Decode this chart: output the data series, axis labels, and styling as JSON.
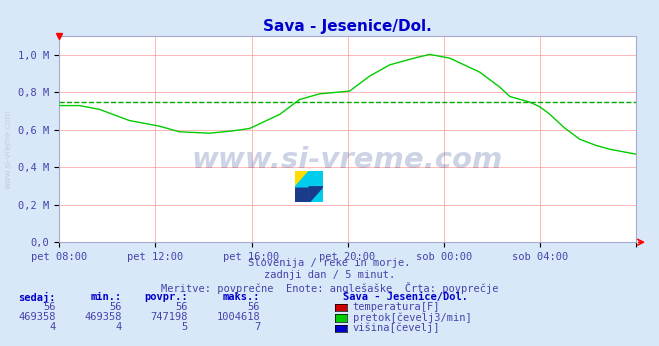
{
  "title": "Sava - Jesenice/Dol.",
  "title_color": "#0000cd",
  "bg_color": "#d8e8f8",
  "plot_bg_color": "#ffffff",
  "grid_color_major": "#ff9999",
  "line_color": "#00cc00",
  "avg_line_color": "#00aa00",
  "avg_line_value": 747198,
  "x_min": 0,
  "x_max": 288,
  "y_min": 0,
  "y_max": 1100000,
  "yticks": [
    0,
    200000,
    400000,
    600000,
    800000,
    1000000
  ],
  "ytick_labels": [
    "0,0",
    "0,2 M",
    "0,4 M",
    "0,6 M",
    "0,8 M",
    "1,0 M"
  ],
  "xtick_positions": [
    0,
    48,
    96,
    144,
    192,
    240,
    288
  ],
  "xtick_labels": [
    "pet 08:00",
    "pet 12:00",
    "pet 16:00",
    "pet 20:00",
    "sob 00:00",
    "sob 04:00",
    ""
  ],
  "watermark": "www.si-vreme.com",
  "sub1": "Slovenija / reke in morje.",
  "sub2": "zadnji dan / 5 minut.",
  "sub3": "Meritve: povprečne  Enote: anglešaške  Črta: povprečje",
  "table_headers": [
    "sedaj:",
    "min.:",
    "povpr.:",
    "maks.:"
  ],
  "table_row1": [
    "56",
    "56",
    "56",
    "56"
  ],
  "table_row2": [
    "469358",
    "469358",
    "747198",
    "1004618"
  ],
  "table_row3": [
    "4",
    "4",
    "5",
    "7"
  ],
  "legend_label": "Sava - Jesenice/Dol.",
  "legend_items": [
    "temperatura[F]",
    "pretok[čevelj3/min]",
    "višina[čevelj]"
  ],
  "legend_colors": [
    "#cc0000",
    "#00cc00",
    "#0000cc"
  ],
  "text_color": "#4444aa",
  "table_val_color": "#4444aa",
  "table_header_color": "#0000cc"
}
